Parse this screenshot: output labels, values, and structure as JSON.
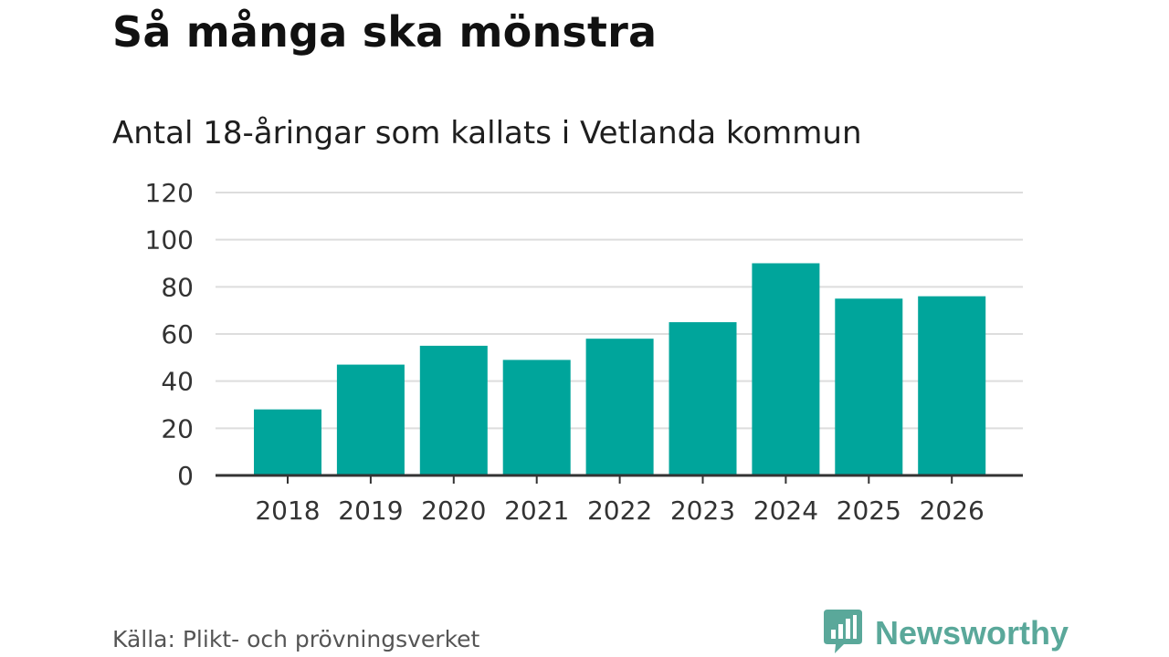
{
  "title": "Så många ska mönstra",
  "subtitle": "Antal 18-åringar som kallats i Vetlanda kommun",
  "source": "Källa: Plikt- och prövningsverket",
  "brand": {
    "name": "Newsworthy",
    "icon": "newsworthy-logo-icon"
  },
  "colors": {
    "bar": "#00a59b",
    "brand": "#5aa89a",
    "grid": "#dddddd",
    "axis": "#333333"
  },
  "chart_data": {
    "type": "bar",
    "categories": [
      "2018",
      "2019",
      "2020",
      "2021",
      "2022",
      "2023",
      "2024",
      "2025",
      "2026"
    ],
    "values": [
      28,
      47,
      55,
      49,
      58,
      65,
      90,
      75,
      76
    ],
    "title": "Så många ska mönstra",
    "subtitle": "Antal 18-åringar som kallats i Vetlanda kommun",
    "xlabel": "",
    "ylabel": "",
    "ylim": [
      0,
      120
    ],
    "yticks": [
      0,
      20,
      40,
      60,
      80,
      100,
      120
    ],
    "grid": true
  }
}
